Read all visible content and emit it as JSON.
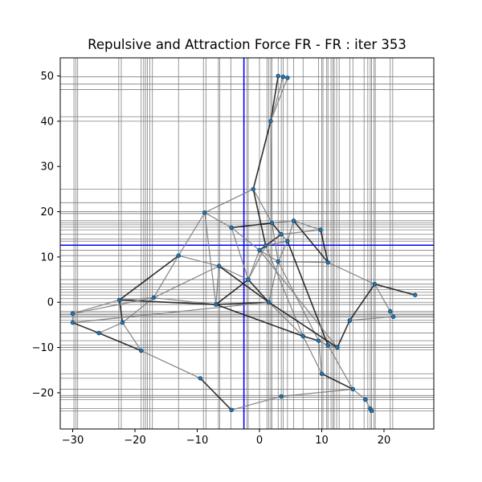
{
  "chart_data": {
    "type": "scatter",
    "title": "Repulsive and Attraction Force FR - FR : iter 353",
    "xlabel": "",
    "ylabel": "",
    "xlim": [
      -32,
      28
    ],
    "ylim": [
      -28,
      54
    ],
    "xticks": [
      -30,
      -20,
      -10,
      0,
      10,
      20
    ],
    "yticks": [
      -20,
      -10,
      0,
      10,
      20,
      30,
      40,
      50
    ],
    "grid": false,
    "legend": "none",
    "colors": {
      "node": "#1f77b4",
      "edge_light": "#808080",
      "edge_dark": "#1a1a1a",
      "grid_line": "#808080",
      "cross_line": "#0000ff"
    },
    "crosshair": {
      "x": -2.5,
      "y": 12.6
    },
    "nodes": [
      {
        "x": 3.0,
        "y": 50.0
      },
      {
        "x": 3.8,
        "y": 49.8
      },
      {
        "x": 4.5,
        "y": 49.6
      },
      {
        "x": 1.8,
        "y": 40.0
      },
      {
        "x": -1.0,
        "y": 25.0
      },
      {
        "x": -8.8,
        "y": 19.8
      },
      {
        "x": -4.5,
        "y": 16.5
      },
      {
        "x": 2.0,
        "y": 17.5
      },
      {
        "x": 5.5,
        "y": 18.0
      },
      {
        "x": 9.8,
        "y": 16.0
      },
      {
        "x": 3.5,
        "y": 15.0
      },
      {
        "x": 4.5,
        "y": 13.5
      },
      {
        "x": 1.0,
        "y": 12.5
      },
      {
        "x": 0.0,
        "y": 11.5
      },
      {
        "x": 3.0,
        "y": 9.0
      },
      {
        "x": 11.0,
        "y": 8.8
      },
      {
        "x": -13.0,
        "y": 10.3
      },
      {
        "x": -6.5,
        "y": 8.0
      },
      {
        "x": -1.8,
        "y": 5.0
      },
      {
        "x": 18.5,
        "y": 4.0
      },
      {
        "x": 25.0,
        "y": 1.6
      },
      {
        "x": -17.0,
        "y": 1.0
      },
      {
        "x": -22.5,
        "y": 0.5
      },
      {
        "x": -7.0,
        "y": -0.5
      },
      {
        "x": 1.5,
        "y": 0.0
      },
      {
        "x": 21.0,
        "y": -2.0
      },
      {
        "x": 21.5,
        "y": -3.2
      },
      {
        "x": -30.0,
        "y": -2.5
      },
      {
        "x": -30.0,
        "y": -4.5
      },
      {
        "x": -25.8,
        "y": -6.8
      },
      {
        "x": -22.0,
        "y": -4.5
      },
      {
        "x": -19.0,
        "y": -10.7
      },
      {
        "x": 7.0,
        "y": -7.5
      },
      {
        "x": 9.5,
        "y": -8.5
      },
      {
        "x": 11.0,
        "y": -9.5
      },
      {
        "x": 12.5,
        "y": -10.0
      },
      {
        "x": 14.5,
        "y": -4.0
      },
      {
        "x": 10.0,
        "y": -15.8
      },
      {
        "x": 15.0,
        "y": -19.2
      },
      {
        "x": 17.0,
        "y": -21.5
      },
      {
        "x": 17.8,
        "y": -23.5
      },
      {
        "x": 18.0,
        "y": -24.0
      },
      {
        "x": -9.5,
        "y": -16.8
      },
      {
        "x": -4.5,
        "y": -23.8
      },
      {
        "x": 3.5,
        "y": -20.8
      }
    ],
    "edges": [
      [
        0,
        3
      ],
      [
        1,
        3
      ],
      [
        2,
        3
      ],
      [
        3,
        4
      ],
      [
        4,
        5
      ],
      [
        4,
        7
      ],
      [
        4,
        12
      ],
      [
        5,
        6
      ],
      [
        5,
        16
      ],
      [
        6,
        7
      ],
      [
        7,
        8
      ],
      [
        8,
        9
      ],
      [
        7,
        10
      ],
      [
        10,
        11
      ],
      [
        11,
        12
      ],
      [
        12,
        13
      ],
      [
        13,
        14
      ],
      [
        14,
        15
      ],
      [
        9,
        15
      ],
      [
        11,
        14
      ],
      [
        8,
        11
      ],
      [
        10,
        12
      ],
      [
        6,
        13
      ],
      [
        16,
        17
      ],
      [
        16,
        22
      ],
      [
        17,
        18
      ],
      [
        18,
        13
      ],
      [
        18,
        24
      ],
      [
        24,
        14
      ],
      [
        15,
        19
      ],
      [
        19,
        20
      ],
      [
        19,
        25
      ],
      [
        25,
        26
      ],
      [
        19,
        36
      ],
      [
        21,
        22
      ],
      [
        21,
        23
      ],
      [
        23,
        24
      ],
      [
        22,
        27
      ],
      [
        27,
        28
      ],
      [
        28,
        29
      ],
      [
        29,
        30
      ],
      [
        30,
        31
      ],
      [
        30,
        22
      ],
      [
        21,
        30
      ],
      [
        31,
        42
      ],
      [
        42,
        43
      ],
      [
        43,
        44
      ],
      [
        44,
        38
      ],
      [
        32,
        33
      ],
      [
        33,
        34
      ],
      [
        34,
        35
      ],
      [
        35,
        36
      ],
      [
        36,
        26
      ],
      [
        33,
        37
      ],
      [
        37,
        38
      ],
      [
        38,
        39
      ],
      [
        39,
        40
      ],
      [
        40,
        41
      ],
      [
        24,
        32
      ],
      [
        14,
        33
      ],
      [
        11,
        34
      ],
      [
        13,
        35
      ],
      [
        23,
        17
      ],
      [
        23,
        18
      ],
      [
        21,
        16
      ],
      [
        12,
        32
      ],
      [
        22,
        23
      ],
      [
        27,
        21
      ],
      [
        28,
        24
      ],
      [
        29,
        31
      ],
      [
        5,
        23
      ],
      [
        6,
        18
      ],
      [
        17,
        24
      ],
      [
        10,
        9
      ],
      [
        7,
        14
      ],
      [
        8,
        15
      ],
      [
        3,
        7
      ],
      [
        18,
        12
      ],
      [
        24,
        35
      ],
      [
        32,
        37
      ],
      [
        34,
        38
      ],
      [
        23,
        32
      ],
      [
        21,
        17
      ]
    ],
    "vertical_lines": [
      -29.8,
      -29.5,
      -29.2,
      -22.6,
      -22.2,
      -19.0,
      -18.6,
      -18.3,
      -18.0,
      -17.6,
      -17.2,
      -13.0,
      -9.0,
      -8.6,
      -6.6,
      -6.4,
      -4.6,
      -2.0,
      -1.8,
      0.0,
      1.2,
      1.5,
      1.8,
      2.0,
      3.0,
      3.5,
      3.8,
      4.5,
      5.5,
      7.0,
      9.5,
      10.0,
      10.2,
      10.8,
      11.0,
      11.5,
      11.8,
      12.0,
      12.4,
      12.8,
      14.5,
      15.0,
      16.8,
      17.4,
      17.8,
      18.0,
      18.4,
      18.6,
      21.0,
      21.4
    ],
    "horizontal_lines": [
      49.8,
      48.2,
      47.0,
      41.0,
      40.0,
      25.0,
      22.0,
      20.0,
      19.6,
      18.0,
      17.5,
      17.1,
      16.6,
      16.0,
      15.0,
      14.0,
      13.5,
      11.5,
      10.3,
      9.0,
      8.0,
      5.0,
      4.0,
      3.4,
      2.8,
      2.2,
      1.6,
      0.8,
      0.0,
      -0.5,
      -2.0,
      -2.4,
      -2.7,
      -3.0,
      -3.3,
      -4.0,
      -4.5,
      -6.8,
      -8.5,
      -9.5,
      -10.0,
      -10.5,
      -15.8,
      -16.8,
      -19.2,
      -20.6,
      -21.0,
      -21.5,
      -23.5,
      -24.0
    ]
  }
}
